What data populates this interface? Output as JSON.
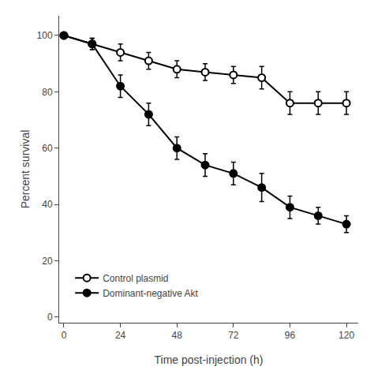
{
  "chart_data": {
    "type": "line",
    "x": [
      0,
      12,
      24,
      36,
      48,
      60,
      72,
      84,
      96,
      108,
      120
    ],
    "series": [
      {
        "name": "Control plasmid",
        "color": "#000000",
        "marker": "open circle",
        "values": [
          100,
          97,
          94,
          91,
          88,
          87,
          86,
          85,
          76,
          76,
          76
        ],
        "errors": [
          0,
          2,
          3,
          3,
          3,
          3,
          3,
          4,
          4,
          4,
          4
        ]
      },
      {
        "name": "Dominant-negative Akt",
        "color": "#000000",
        "marker": "circle",
        "values": [
          100,
          97,
          82,
          72,
          60,
          54,
          51,
          46,
          39,
          36,
          33
        ],
        "errors": [
          0,
          2,
          4,
          4,
          4,
          4,
          4,
          5,
          4,
          3,
          3
        ]
      }
    ],
    "xlabel": "Time post-injection (h)",
    "ylabel": "Percent survival",
    "xlim": [
      -2,
      125
    ],
    "ylim": [
      -2,
      107
    ],
    "xticks": [
      0,
      24,
      48,
      72,
      96,
      120
    ],
    "yticks": [
      0,
      20,
      40,
      60,
      80,
      100
    ],
    "grid": false,
    "legend": "lower left"
  }
}
